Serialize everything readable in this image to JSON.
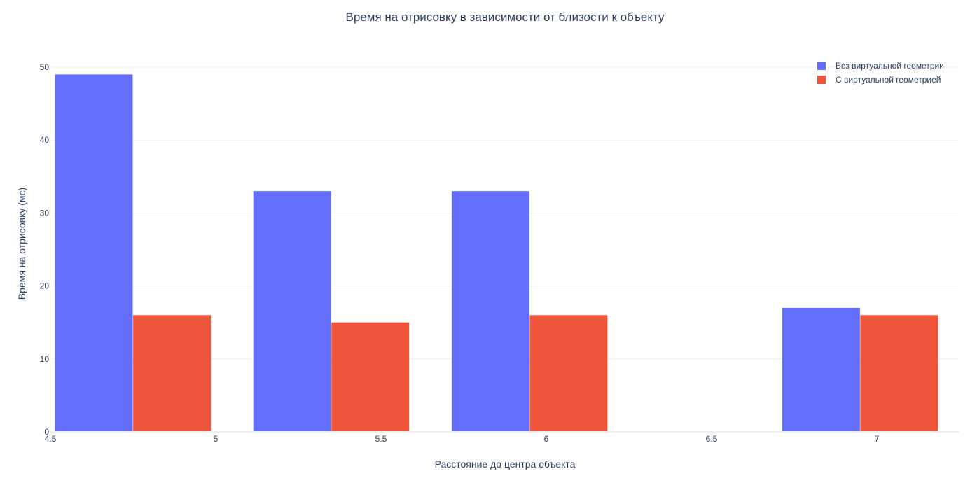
{
  "chart_data": {
    "type": "bar",
    "title": "Время на отрисовку в зависимости от близости к объекту",
    "xlabel": "Расстояние до центра объекта",
    "ylabel": "Время на отрисовку (мс)",
    "x": [
      4.75,
      5.35,
      5.95,
      6.95
    ],
    "xlim": [
      4.5,
      7.25
    ],
    "xticks": [
      4.5,
      5,
      5.5,
      6,
      6.5,
      7
    ],
    "xtick_labels": [
      "4.5",
      "5",
      "5.5",
      "6",
      "6.5",
      "7"
    ],
    "ylim": [
      0,
      52
    ],
    "yticks": [
      0,
      10,
      20,
      30,
      40,
      50
    ],
    "ytick_labels": [
      "0",
      "10",
      "20",
      "30",
      "40",
      "50"
    ],
    "grid": true,
    "legend_position": "top-right",
    "series": [
      {
        "name": "Без виртуальной геометрии",
        "color": "#636efa",
        "values": [
          49,
          33,
          33,
          17
        ]
      },
      {
        "name": "С виртуальной геометрией",
        "color": "#ef553b",
        "values": [
          16,
          15,
          16,
          16
        ]
      }
    ]
  }
}
